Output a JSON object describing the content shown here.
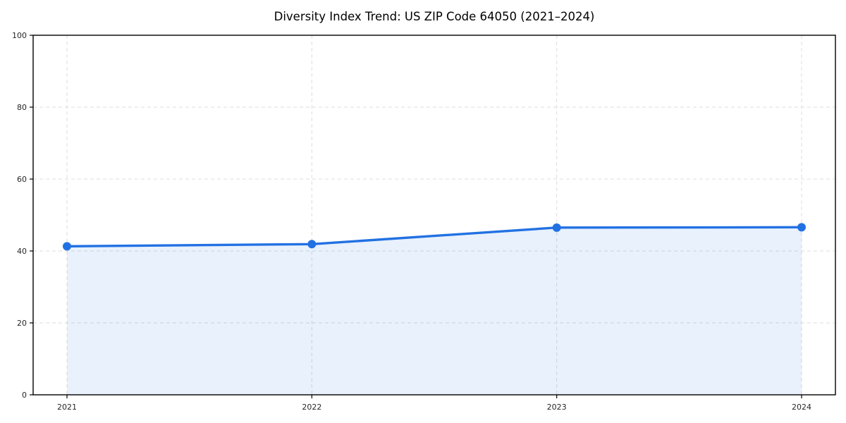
{
  "chart_data": {
    "type": "area",
    "title": "Diversity Index Trend: US ZIP Code 64050 (2021–2024)",
    "categories": [
      "2021",
      "2022",
      "2023",
      "2024"
    ],
    "series": [
      {
        "name": "Diversity Index",
        "values": [
          41.3,
          41.9,
          46.5,
          46.6
        ]
      }
    ],
    "xlabel": "",
    "ylabel": "",
    "ylim": [
      0,
      100
    ],
    "yticks": [
      0,
      20,
      40,
      60,
      80,
      100
    ],
    "grid": {
      "show": true,
      "style": "dashed",
      "axes": "both",
      "color": "#dcdcdc"
    },
    "legend_position": "none",
    "line_color": "#2271e3",
    "marker_color": "#2271e3",
    "fill_color": "rgba(34, 113, 227, 0.10)",
    "frame_color": "#000000",
    "marker": "circle"
  }
}
